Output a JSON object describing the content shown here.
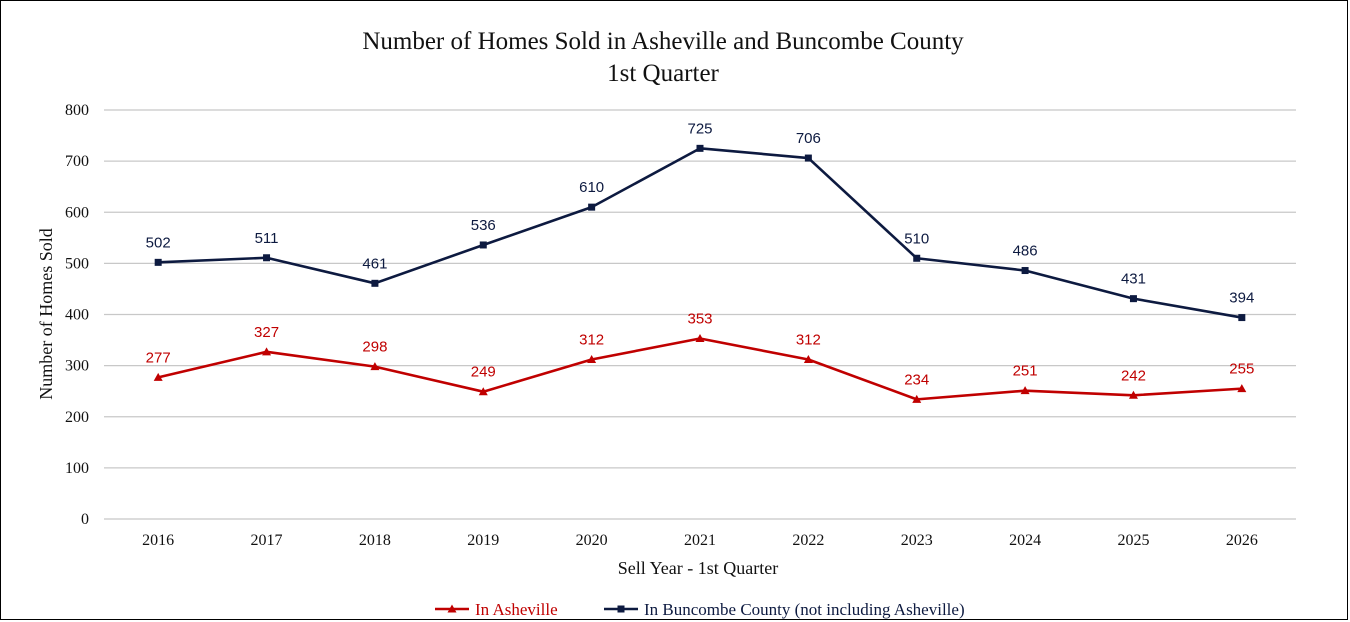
{
  "chart_data": {
    "type": "line",
    "title": "Number of Homes Sold in Asheville and Buncombe County",
    "subtitle": "1st Quarter",
    "xlabel": "Sell Year - 1st Quarter",
    "ylabel": "Number of Homes Sold",
    "ylim": [
      0,
      800
    ],
    "yticks": [
      "0",
      "100",
      "200",
      "300",
      "400",
      "500",
      "600",
      "700",
      "800"
    ],
    "categories": [
      "2016",
      "2017",
      "2018",
      "2019",
      "2020",
      "2021",
      "2022",
      "2023",
      "2024",
      "2025",
      "2026"
    ],
    "grid": true,
    "legend_position": "bottom",
    "series": [
      {
        "name": "In Asheville",
        "color": "#c00000",
        "marker": "triangle",
        "values": [
          277,
          327,
          298,
          249,
          312,
          353,
          312,
          234,
          251,
          242,
          255
        ]
      },
      {
        "name": "In Buncombe County (not including Asheville)",
        "color": "#0d1a40",
        "marker": "square",
        "values": [
          502,
          511,
          461,
          536,
          610,
          725,
          706,
          510,
          486,
          431,
          394
        ]
      }
    ]
  }
}
